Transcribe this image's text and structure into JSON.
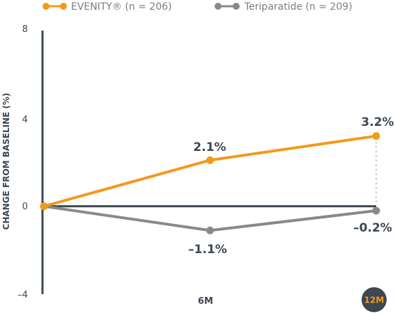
{
  "colors": {
    "evenity": "#f29a1a",
    "teriparatide": "#8c8985",
    "axis": "#3c4752",
    "guide": "#d4d4d4",
    "badge_bg": "#3c4752",
    "badge_text": "#f29a1a"
  },
  "chart_data": {
    "type": "line",
    "ylabel": "CHANGE FROM BASELINE (%)",
    "ylim": [
      -4,
      8
    ],
    "yticks": [
      "8",
      "4",
      "0",
      "–4"
    ],
    "ytick_values": [
      8,
      4,
      0,
      -4
    ],
    "x": [
      0,
      6,
      12
    ],
    "xticks": [
      "6M",
      "12M"
    ],
    "xtick_values": [
      6,
      12
    ],
    "highlighted_xtick": "12M",
    "legend_position": "top-left",
    "series": [
      {
        "name": "EVENITY® (n = 206)",
        "values": [
          0,
          2.1,
          3.2
        ],
        "labels": [
          "",
          "2.1%",
          "3.2%"
        ]
      },
      {
        "name": "Teriparatide (n = 209)",
        "values": [
          0,
          -1.1,
          -0.2
        ],
        "labels": [
          "",
          "–1.1%",
          "–0.2%"
        ]
      }
    ]
  }
}
